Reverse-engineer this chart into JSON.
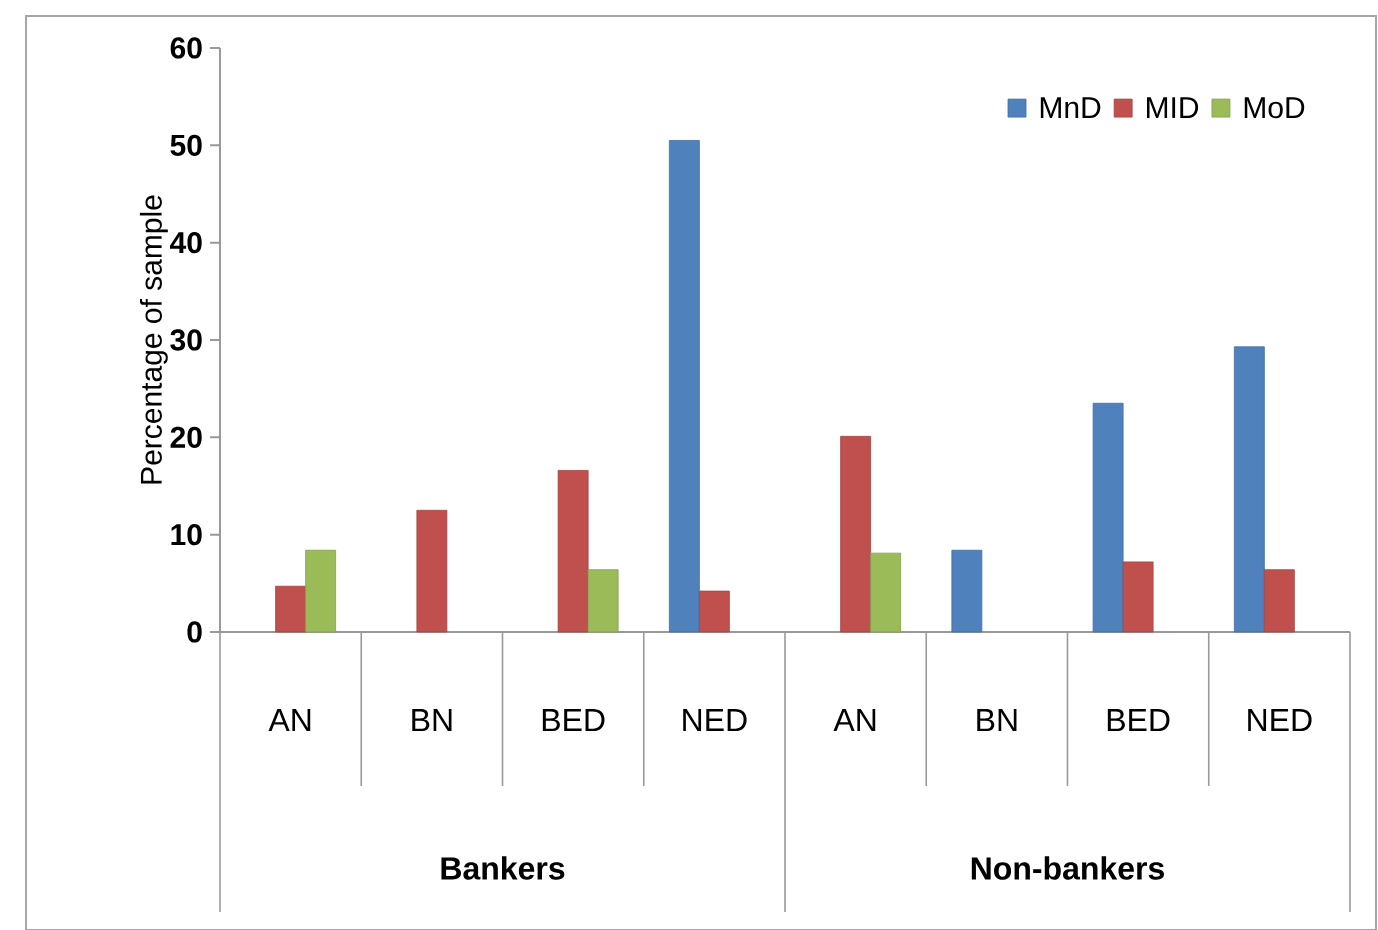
{
  "chart_data": {
    "type": "bar",
    "ylabel": "Percentage of sample",
    "categories": [
      "AN",
      "BN",
      "BED",
      "NED",
      "AN",
      "BN",
      "BED",
      "NED"
    ],
    "series": [
      {
        "name": "MnD",
        "color": "#4f81bd",
        "values": [
          null,
          null,
          null,
          50.5,
          null,
          8.4,
          23.5,
          29.3
        ]
      },
      {
        "name": "MID",
        "color": "#c0504d",
        "values": [
          4.7,
          12.5,
          16.6,
          4.2,
          20.1,
          null,
          7.2,
          6.4
        ]
      },
      {
        "name": "MoD",
        "color": "#9bbb59",
        "values": [
          8.4,
          null,
          6.4,
          null,
          8.1,
          null,
          null,
          null
        ]
      }
    ],
    "ylim": [
      0,
      60
    ],
    "yticks": [
      0,
      10,
      20,
      30,
      40,
      50,
      60
    ],
    "legend": "top right",
    "annotations": [
      "Bankers",
      "Non-bankers"
    ]
  }
}
